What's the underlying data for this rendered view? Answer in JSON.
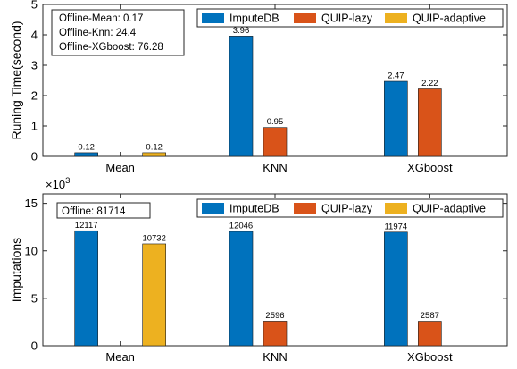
{
  "colors": {
    "ImputeDB": "#0072BD",
    "QUIP-lazy": "#D95319",
    "QUIP-adaptive": "#EDB120"
  },
  "chart_data": [
    {
      "type": "bar",
      "categories": [
        "Mean",
        "KNN",
        "XGboost"
      ],
      "series": [
        {
          "name": "ImputeDB",
          "values": [
            0.12,
            3.96,
            2.47
          ],
          "labels": [
            "0.12",
            "3.96",
            "2.47"
          ]
        },
        {
          "name": "QUIP-lazy",
          "values": [
            null,
            0.95,
            2.22
          ],
          "labels": [
            null,
            "0.95",
            "2.22"
          ]
        },
        {
          "name": "QUIP-adaptive",
          "values": [
            0.12,
            null,
            null
          ],
          "labels": [
            "0.12",
            null,
            null
          ]
        }
      ],
      "ylabel": "Runing Time(second)",
      "ylim": [
        0,
        5
      ],
      "yticks": [
        "0",
        "1",
        "2",
        "3",
        "4",
        "5"
      ],
      "legend": "top-right",
      "info_box": [
        "Offline-Mean: 0.17",
        "Offline-Knn: 24.4",
        "Offline-XGboost: 76.28"
      ]
    },
    {
      "type": "bar",
      "categories": [
        "Mean",
        "KNN",
        "XGboost"
      ],
      "series": [
        {
          "name": "ImputeDB",
          "values": [
            12117,
            12046,
            11974
          ],
          "labels": [
            "12117",
            "12046",
            "11974"
          ]
        },
        {
          "name": "QUIP-lazy",
          "values": [
            null,
            2596,
            2587
          ],
          "labels": [
            null,
            "2596",
            "2587"
          ]
        },
        {
          "name": "QUIP-adaptive",
          "values": [
            10732,
            null,
            null
          ],
          "labels": [
            "10732",
            null,
            null
          ]
        }
      ],
      "ylabel": "Imputations",
      "ylim": [
        0,
        16000
      ],
      "yticks": [
        "0",
        "5",
        "10",
        "15"
      ],
      "y_multiplier": "×10",
      "y_multiplier_exp": "3",
      "legend": "top-right",
      "info_box": [
        "Offline: 81714"
      ]
    }
  ]
}
